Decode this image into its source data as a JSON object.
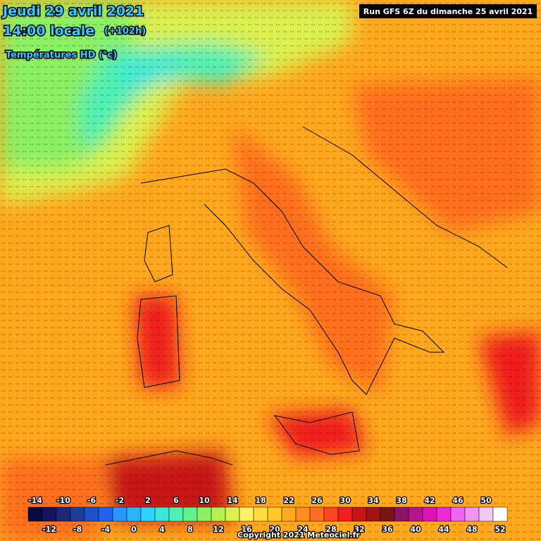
{
  "header": {
    "date": "Jeudi 29 avril 2021",
    "time": "14:00 locale",
    "lead": "(+102h)",
    "field": "Températures HD (°c)",
    "run": "Run GFS 6Z du dimanche 25 avril 2021"
  },
  "legend": {
    "stops": [
      {
        "value": -14,
        "color": "#0a0a3c"
      },
      {
        "value": -12,
        "color": "#14145a"
      },
      {
        "value": -10,
        "color": "#1e2878"
      },
      {
        "value": -8,
        "color": "#1e3c9a"
      },
      {
        "value": -6,
        "color": "#1e50c8"
      },
      {
        "value": -4,
        "color": "#1e64f0"
      },
      {
        "value": -2,
        "color": "#2896ff"
      },
      {
        "value": 0,
        "color": "#28b4ff"
      },
      {
        "value": 2,
        "color": "#32d2ff"
      },
      {
        "value": 4,
        "color": "#3ce6dc"
      },
      {
        "value": 6,
        "color": "#50f0b4"
      },
      {
        "value": 8,
        "color": "#64f08c"
      },
      {
        "value": 10,
        "color": "#8cf064"
      },
      {
        "value": 12,
        "color": "#b4f050"
      },
      {
        "value": 14,
        "color": "#dcf050"
      },
      {
        "value": 16,
        "color": "#fff064"
      },
      {
        "value": 18,
        "color": "#ffdc3c"
      },
      {
        "value": 20,
        "color": "#ffc828"
      },
      {
        "value": 22,
        "color": "#ffaa1e"
      },
      {
        "value": 24,
        "color": "#ff8c1e"
      },
      {
        "value": 26,
        "color": "#ff6e1e"
      },
      {
        "value": 28,
        "color": "#ff461e"
      },
      {
        "value": 30,
        "color": "#f01e1e"
      },
      {
        "value": 32,
        "color": "#c81414"
      },
      {
        "value": 34,
        "color": "#a01414"
      },
      {
        "value": 36,
        "color": "#781414"
      },
      {
        "value": 38,
        "color": "#8c1464"
      },
      {
        "value": 40,
        "color": "#b4148c"
      },
      {
        "value": 42,
        "color": "#dc14b4"
      },
      {
        "value": 44,
        "color": "#f028dc"
      },
      {
        "value": 46,
        "color": "#f064f0"
      },
      {
        "value": 48,
        "color": "#f096f0"
      },
      {
        "value": 50,
        "color": "#f0c8f0"
      },
      {
        "value": 52,
        "color": "#ffffff"
      }
    ]
  },
  "footer": {
    "copyright": "Copyright 2021 Meteociel.fr"
  }
}
